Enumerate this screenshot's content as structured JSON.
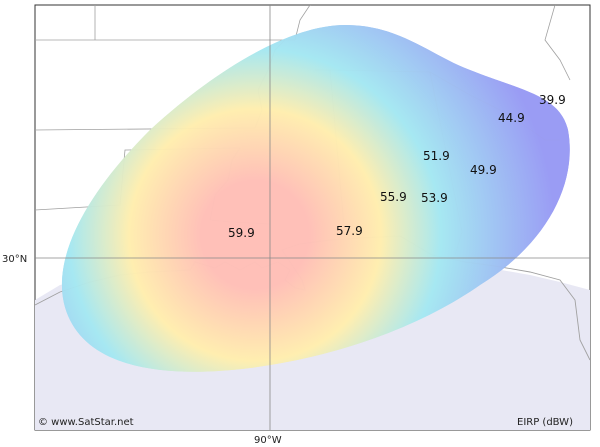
{
  "credit": "© www.SatStar.net",
  "legend": "EIRP (dBW)",
  "axes": {
    "latitude_label": "30°N",
    "longitude_label": "90°W"
  },
  "contours": [
    {
      "value": "59.9"
    },
    {
      "value": "57.9"
    },
    {
      "value": "55.9"
    },
    {
      "value": "53.9"
    },
    {
      "value": "51.9"
    },
    {
      "value": "49.9"
    },
    {
      "value": "44.9"
    },
    {
      "value": "39.9"
    }
  ],
  "colors": {
    "land": "#ffffff",
    "water": "#e8e8f4",
    "outer_band": "#9a9cf4",
    "mid_band": "#a6e8f2",
    "inner_band": "#ffeeb0",
    "center": "#ffc0b8",
    "contour_line": "#555555",
    "border_line": "#a0a0a0",
    "frame": "#333333"
  }
}
